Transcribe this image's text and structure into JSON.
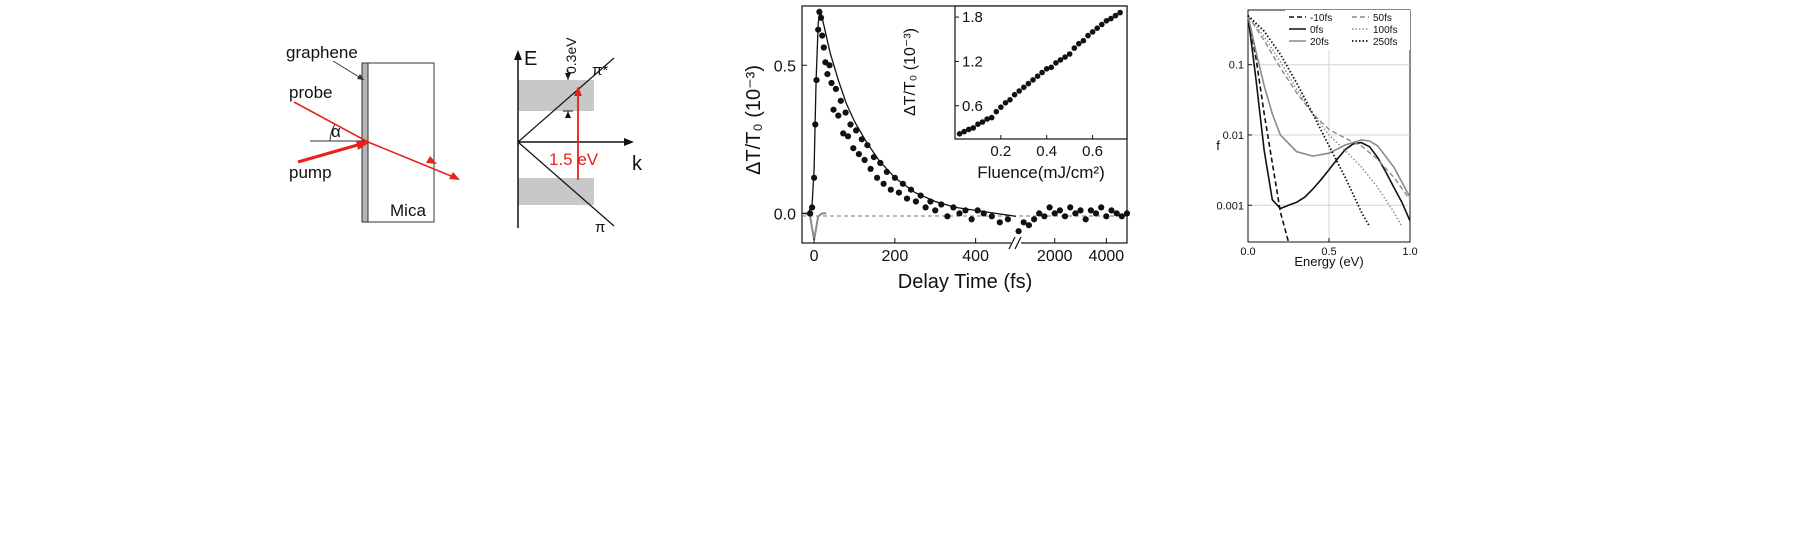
{
  "panel_a": {
    "labels": {
      "graphene": "graphene",
      "probe": "probe",
      "alpha": "α",
      "pump": "pump",
      "mica": "Mica"
    },
    "colors": {
      "beam": "#e8211c",
      "sample": "#b5b5b5"
    }
  },
  "panel_b": {
    "labels": {
      "E": "E",
      "k": "k",
      "pi_star": "π*",
      "pi": "π",
      "gap": "0.3eV",
      "pump_energy": "1.5 eV"
    },
    "colors": {
      "band_fill": "#c8c8c8",
      "arrow": "#e8211c"
    }
  },
  "chart_data": [
    {
      "type": "scatter",
      "ylabel": "ΔT/T₀ (10⁻³)",
      "xlabel": "Delay Time (fs)",
      "x_ticks": [
        "0",
        "200",
        "400",
        "2000",
        "4000"
      ],
      "y_ticks": [
        "0.0",
        "0.5"
      ],
      "xlim_short": [
        -30,
        500
      ],
      "xlim_long": [
        500,
        4800
      ],
      "ylim": [
        -0.1,
        0.7
      ],
      "axis_break": "//",
      "series": [
        {
          "kind": "points",
          "x": [
            -10,
            -5,
            0,
            3,
            6,
            10,
            13,
            17,
            20,
            24,
            28,
            33,
            38,
            43,
            48,
            54,
            60,
            66,
            72,
            78,
            84,
            90,
            97,
            104,
            111,
            118,
            125,
            132,
            140,
            148,
            156,
            164,
            172,
            180,
            190,
            200,
            210,
            220,
            230,
            240,
            252,
            264,
            276,
            288,
            300,
            315,
            330,
            345,
            360,
            375,
            390,
            405,
            420,
            440,
            460,
            480
          ],
          "y": [
            0.0,
            0.02,
            0.12,
            0.3,
            0.45,
            0.62,
            0.68,
            0.66,
            0.6,
            0.56,
            0.51,
            0.47,
            0.5,
            0.44,
            0.35,
            0.42,
            0.33,
            0.38,
            0.27,
            0.34,
            0.26,
            0.3,
            0.22,
            0.28,
            0.2,
            0.25,
            0.18,
            0.23,
            0.15,
            0.19,
            0.12,
            0.17,
            0.1,
            0.14,
            0.08,
            0.12,
            0.07,
            0.1,
            0.05,
            0.08,
            0.04,
            0.06,
            0.02,
            0.04,
            0.01,
            0.03,
            -0.01,
            0.02,
            0.0,
            0.01,
            -0.02,
            0.01,
            0.0,
            -0.01,
            -0.03,
            -0.02
          ]
        },
        {
          "kind": "points_long",
          "x": [
            600,
            800,
            1000,
            1200,
            1400,
            1600,
            1800,
            2000,
            2200,
            2400,
            2600,
            2800,
            3000,
            3200,
            3400,
            3600,
            3800,
            4000,
            4200,
            4400,
            4600,
            4800
          ],
          "y": [
            -0.06,
            -0.03,
            -0.04,
            -0.02,
            0.0,
            -0.01,
            0.02,
            0.0,
            0.01,
            -0.01,
            0.02,
            0.0,
            0.01,
            -0.02,
            0.01,
            0.0,
            0.02,
            -0.01,
            0.01,
            0.0,
            -0.01,
            0.0
          ]
        },
        {
          "kind": "fit",
          "x": [
            -30,
            -15,
            -5,
            0,
            5,
            10,
            15,
            20,
            30,
            40,
            60,
            80,
            100,
            130,
            160,
            200,
            250,
            300,
            350,
            400,
            450,
            500
          ],
          "y": [
            0.0,
            0.0,
            0.03,
            0.15,
            0.45,
            0.64,
            0.69,
            0.66,
            0.6,
            0.54,
            0.45,
            0.37,
            0.31,
            0.24,
            0.18,
            0.12,
            0.07,
            0.04,
            0.02,
            0.01,
            0.0,
            -0.01
          ]
        },
        {
          "kind": "pump_profile",
          "x": [
            -30,
            -20,
            -10,
            -5,
            0,
            5,
            10,
            20,
            30
          ],
          "y": [
            0.0,
            0.0,
            -0.01,
            -0.05,
            -0.09,
            -0.05,
            -0.01,
            0.0,
            0.0
          ]
        }
      ],
      "inset": {
        "type": "scatter",
        "xlabel": "Fluence(mJ/cm²)",
        "ylabel": "ΔT/T₀ (10⁻³)",
        "x_ticks": [
          "0.2",
          "0.4",
          "0.6"
        ],
        "y_ticks": [
          "0.6",
          "1.2",
          "1.8"
        ],
        "xlim": [
          0.0,
          0.75
        ],
        "ylim": [
          0.15,
          1.95
        ],
        "x": [
          0.02,
          0.04,
          0.06,
          0.08,
          0.1,
          0.12,
          0.14,
          0.16,
          0.18,
          0.2,
          0.22,
          0.24,
          0.26,
          0.28,
          0.3,
          0.32,
          0.34,
          0.36,
          0.38,
          0.4,
          0.42,
          0.44,
          0.46,
          0.48,
          0.5,
          0.52,
          0.54,
          0.56,
          0.58,
          0.6,
          0.62,
          0.64,
          0.66,
          0.68,
          0.7,
          0.72
        ],
        "y": [
          0.22,
          0.25,
          0.28,
          0.3,
          0.35,
          0.38,
          0.42,
          0.44,
          0.52,
          0.58,
          0.64,
          0.68,
          0.75,
          0.8,
          0.85,
          0.9,
          0.95,
          1.0,
          1.05,
          1.1,
          1.12,
          1.18,
          1.22,
          1.26,
          1.3,
          1.38,
          1.44,
          1.48,
          1.55,
          1.6,
          1.65,
          1.7,
          1.75,
          1.78,
          1.82,
          1.86
        ]
      }
    },
    {
      "type": "line",
      "ylabel": "f",
      "xlabel": "Energy (eV)",
      "x_ticks": [
        "0.0",
        "0.5",
        "1.0"
      ],
      "y_ticks": [
        "0.1",
        "0.01",
        "0.001"
      ],
      "xlim": [
        0.0,
        1.0
      ],
      "ylim": [
        0.0003,
        0.6
      ],
      "log_y": true,
      "legend": "top",
      "series": [
        {
          "name": "-10fs",
          "style": "dashed-black",
          "x": [
            0.0,
            0.05,
            0.1,
            0.15,
            0.2,
            0.25
          ],
          "y": [
            0.5,
            0.12,
            0.02,
            0.004,
            0.0008,
            0.0002
          ]
        },
        {
          "name": "0fs",
          "style": "solid-black",
          "x": [
            0.0,
            0.05,
            0.1,
            0.15,
            0.2,
            0.25,
            0.3,
            0.35,
            0.4,
            0.45,
            0.5,
            0.55,
            0.6,
            0.65,
            0.7,
            0.75,
            0.8,
            0.85,
            0.9,
            0.95,
            1.0
          ],
          "y": [
            0.5,
            0.06,
            0.006,
            0.0012,
            0.0009,
            0.001,
            0.0011,
            0.0013,
            0.0017,
            0.0023,
            0.0032,
            0.0045,
            0.0062,
            0.0075,
            0.0078,
            0.0068,
            0.0048,
            0.003,
            0.0018,
            0.0011,
            0.0006
          ]
        },
        {
          "name": "20fs",
          "style": "solid-gray",
          "x": [
            0.0,
            0.05,
            0.1,
            0.15,
            0.2,
            0.3,
            0.4,
            0.5,
            0.6,
            0.7,
            0.75,
            0.8,
            0.9,
            1.0
          ],
          "y": [
            0.5,
            0.15,
            0.05,
            0.02,
            0.01,
            0.0058,
            0.005,
            0.0055,
            0.0072,
            0.0085,
            0.0082,
            0.007,
            0.0035,
            0.0013
          ]
        },
        {
          "name": "50fs",
          "style": "dashed-gray",
          "x": [
            0.0,
            0.1,
            0.2,
            0.3,
            0.4,
            0.5,
            0.6,
            0.7,
            0.8,
            0.9,
            1.0
          ],
          "y": [
            0.5,
            0.22,
            0.09,
            0.04,
            0.02,
            0.012,
            0.009,
            0.007,
            0.0045,
            0.0025,
            0.0012
          ]
        },
        {
          "name": "100fs",
          "style": "dotted-gray",
          "x": [
            0.0,
            0.1,
            0.2,
            0.3,
            0.4,
            0.5,
            0.6,
            0.7,
            0.8,
            0.9,
            0.95
          ],
          "y": [
            0.5,
            0.25,
            0.11,
            0.045,
            0.02,
            0.01,
            0.006,
            0.0035,
            0.0018,
            0.0008,
            0.0005
          ]
        },
        {
          "name": "250fs",
          "style": "dotted-black",
          "x": [
            0.0,
            0.1,
            0.2,
            0.3,
            0.4,
            0.5,
            0.6,
            0.7,
            0.75
          ],
          "y": [
            0.5,
            0.3,
            0.14,
            0.055,
            0.02,
            0.007,
            0.0025,
            0.0008,
            0.0005
          ]
        }
      ]
    }
  ]
}
